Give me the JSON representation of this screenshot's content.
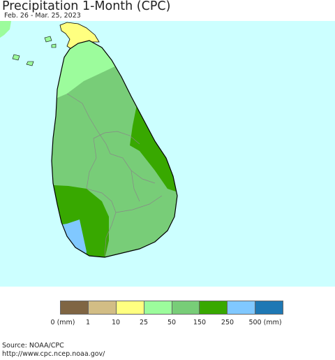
{
  "header": {
    "title": "Precipitation 1-Month (CPC)",
    "date_range": "Feb. 26 - Mar. 25, 2023"
  },
  "map": {
    "region": "Sri Lanka",
    "ocean_color": "#ccffff",
    "regions": [
      {
        "name": "jaffna-peninsula",
        "category": "10-25",
        "color": "#ffff80"
      },
      {
        "name": "northern-province",
        "category": "25-50",
        "color": "#9cfc9c"
      },
      {
        "name": "interior",
        "category": "50-150",
        "color": "#78cd78"
      },
      {
        "name": "east-coast",
        "category": "150-250",
        "color": "#38a800"
      },
      {
        "name": "southwest",
        "category": "150-250",
        "color": "#38a800"
      },
      {
        "name": "southwest-coast",
        "category": "250-500",
        "color": "#80c8ff"
      }
    ]
  },
  "legend": {
    "colors": [
      "#7f6543",
      "#d2bd85",
      "#ffff80",
      "#9cfc9c",
      "#78cd78",
      "#38a800",
      "#80c8ff",
      "#1e78b4"
    ],
    "labels": [
      "0 (mm)",
      "1",
      "10",
      "25",
      "50",
      "150",
      "250",
      "500 (mm)"
    ]
  },
  "footer": {
    "source": "Source: NOAA/CPC",
    "url": "http://www.cpc.ncep.noaa.gov/"
  }
}
